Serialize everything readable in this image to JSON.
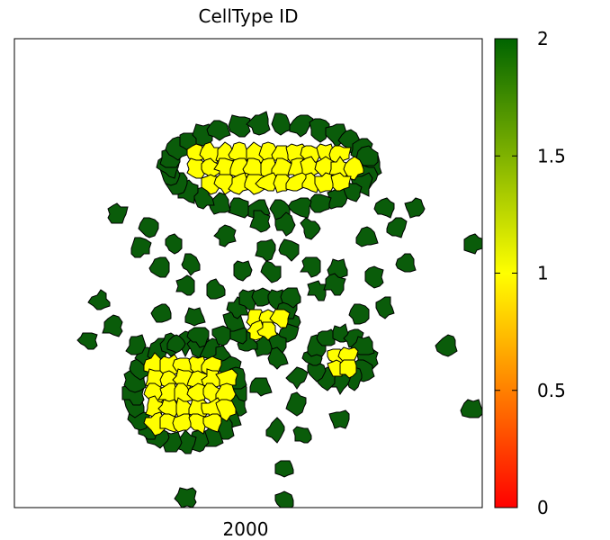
{
  "chart_data": {
    "type": "heatmap",
    "title": "CellType ID",
    "xlabel": "2000",
    "colorbar": {
      "range": [
        0,
        2
      ],
      "ticks": [
        "0",
        "0.5",
        "1",
        "1.5",
        "2"
      ],
      "colormap": [
        "#ff0000",
        "#ff8000",
        "#ffff00",
        "#7fb200",
        "#006400"
      ]
    },
    "legend": "right",
    "grid": false,
    "cell_type_colors": {
      "1": "#ffff00",
      "2": "#0a5c0a"
    },
    "clusters": [
      {
        "name": "top-cluster",
        "core_type": 1,
        "shell_type": 2
      },
      {
        "name": "bottom-left-cluster",
        "core_type": 1,
        "shell_type": 2
      },
      {
        "name": "center-cluster",
        "core_type": 1,
        "shell_type": 2
      },
      {
        "name": "right-cluster",
        "core_type": 1,
        "shell_type": 2
      }
    ]
  }
}
